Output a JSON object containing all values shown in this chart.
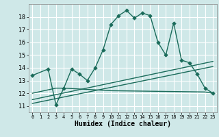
{
  "title": "",
  "xlabel": "Humidex (Indice chaleur)",
  "ylabel": "",
  "bg_color": "#cfe8e8",
  "grid_color": "#ffffff",
  "line_color": "#1a6b5a",
  "xlim": [
    -0.5,
    23.5
  ],
  "ylim": [
    10.5,
    19.0
  ],
  "xticks": [
    0,
    1,
    2,
    3,
    4,
    5,
    6,
    7,
    8,
    9,
    10,
    11,
    12,
    13,
    14,
    15,
    16,
    17,
    18,
    19,
    20,
    21,
    22,
    23
  ],
  "yticks": [
    11,
    12,
    13,
    14,
    15,
    16,
    17,
    18
  ],
  "curve1_x": [
    0,
    2,
    3,
    4,
    5,
    6,
    7,
    8,
    9,
    10,
    11,
    12,
    13,
    14,
    15,
    16,
    17,
    18,
    19,
    20,
    21,
    22,
    23
  ],
  "curve1_y": [
    13.4,
    13.9,
    11.1,
    12.4,
    13.9,
    13.5,
    13.0,
    14.0,
    15.4,
    17.4,
    18.1,
    18.5,
    17.9,
    18.3,
    18.1,
    16.0,
    15.0,
    17.5,
    14.6,
    14.4,
    13.5,
    12.4,
    12.0
  ],
  "curve2_x": [
    0,
    3,
    4,
    10,
    22,
    23
  ],
  "curve2_y": [
    12.0,
    12.4,
    12.4,
    12.2,
    12.1,
    12.0
  ],
  "curve3_x": [
    0,
    23
  ],
  "curve3_y": [
    11.5,
    14.5
  ],
  "curve4_x": [
    0,
    23
  ],
  "curve4_y": [
    11.2,
    14.1
  ]
}
